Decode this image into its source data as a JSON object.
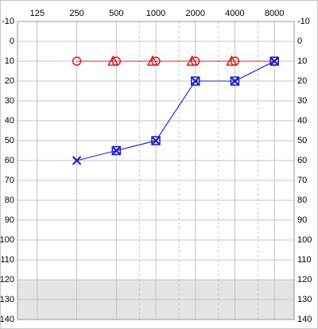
{
  "chart_data": {
    "type": "audiogram",
    "x": [
      125,
      250,
      500,
      1000,
      2000,
      4000,
      8000
    ],
    "xscale": "log",
    "xlim": [
      88.39,
      11313.71
    ],
    "xticks": [
      125,
      250,
      500,
      1000,
      2000,
      4000,
      8000
    ],
    "xminorticks": [
      750,
      1500,
      3000,
      6000
    ],
    "ylim": [
      -10,
      140
    ],
    "y_inverted": true,
    "yticks": [
      -10,
      0,
      10,
      20,
      30,
      40,
      50,
      60,
      70,
      80,
      90,
      100,
      110,
      120,
      130,
      140
    ],
    "shaded_range": [
      120,
      140
    ],
    "grid": true,
    "series": [
      {
        "marker": "circle",
        "line": "solid",
        "color": "#d42020",
        "values": [
          null,
          10,
          10,
          10,
          10,
          10,
          10
        ]
      },
      {
        "marker": "triangle",
        "line": "dashed",
        "color": "#d42020",
        "values": [
          null,
          null,
          10,
          10,
          10,
          10,
          null
        ]
      },
      {
        "marker": "cross",
        "line": "solid",
        "color": "#1c1cc8",
        "values": [
          null,
          60,
          55,
          50,
          20,
          20,
          10
        ]
      },
      {
        "marker": "square",
        "line": "dashed",
        "color": "#1c1cc8",
        "values": [
          null,
          null,
          55,
          50,
          20,
          20,
          10
        ]
      }
    ]
  }
}
